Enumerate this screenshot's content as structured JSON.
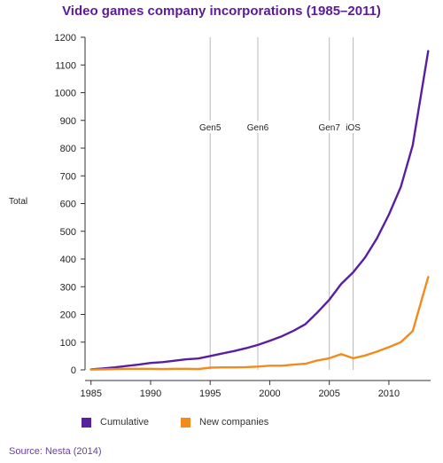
{
  "chart_data": {
    "type": "line",
    "title": "Video games company incorporations (1985–2011)",
    "ylabel": "Total",
    "xlabel": "",
    "xlim": [
      1984.5,
      2013.5
    ],
    "ylim": [
      0,
      1200
    ],
    "xticks": [
      1985,
      1990,
      1995,
      2000,
      2005,
      2010
    ],
    "yticks": [
      0,
      100,
      200,
      300,
      400,
      500,
      600,
      700,
      800,
      900,
      1000,
      1100,
      1200
    ],
    "grid": false,
    "legend_position": "bottom-left",
    "series": [
      {
        "name": "Cumulative",
        "color": "#5a1ea0",
        "points": [
          [
            1985,
            2
          ],
          [
            1986,
            5
          ],
          [
            1987,
            9
          ],
          [
            1988,
            14
          ],
          [
            1989,
            19
          ],
          [
            1990,
            25
          ],
          [
            1991,
            28
          ],
          [
            1992,
            33
          ],
          [
            1993,
            38
          ],
          [
            1994,
            41
          ],
          [
            1995,
            50
          ],
          [
            1996,
            59
          ],
          [
            1997,
            68
          ],
          [
            1998,
            78
          ],
          [
            1999,
            90
          ],
          [
            2000,
            105
          ],
          [
            2001,
            121
          ],
          [
            2002,
            141
          ],
          [
            2003,
            165
          ],
          [
            2004,
            207
          ],
          [
            2005,
            253
          ],
          [
            2006,
            310
          ],
          [
            2007,
            352
          ],
          [
            2008,
            405
          ],
          [
            2009,
            475
          ],
          [
            2010,
            560
          ],
          [
            2011,
            660
          ],
          [
            2012,
            810
          ],
          [
            2013.3,
            1150
          ]
        ]
      },
      {
        "name": "New companies",
        "color": "#f28a1c",
        "points": [
          [
            1985,
            1
          ],
          [
            1986,
            2
          ],
          [
            1987,
            3
          ],
          [
            1988,
            4
          ],
          [
            1989,
            4
          ],
          [
            1990,
            4
          ],
          [
            1991,
            3
          ],
          [
            1992,
            4
          ],
          [
            1993,
            4
          ],
          [
            1994,
            3
          ],
          [
            1995,
            8
          ],
          [
            1996,
            9
          ],
          [
            1997,
            9
          ],
          [
            1998,
            10
          ],
          [
            1999,
            12
          ],
          [
            2000,
            15
          ],
          [
            2001,
            15
          ],
          [
            2002,
            19
          ],
          [
            2003,
            22
          ],
          [
            2004,
            34
          ],
          [
            2005,
            42
          ],
          [
            2006,
            57
          ],
          [
            2007,
            42
          ],
          [
            2008,
            52
          ],
          [
            2009,
            66
          ],
          [
            2010,
            82
          ],
          [
            2011,
            100
          ],
          [
            2012,
            140
          ],
          [
            2013.3,
            335
          ]
        ]
      }
    ],
    "annotations": [
      {
        "label": "Gen5",
        "x": 1995
      },
      {
        "label": "Gen6",
        "x": 1999
      },
      {
        "label": "Gen7",
        "x": 2005
      },
      {
        "label": "iOS",
        "x": 2007
      }
    ]
  },
  "legend": {
    "cumulative": "Cumulative",
    "new_companies": "New companies"
  },
  "source": "Source: Nesta (2014)",
  "colors": {
    "title": "#5b1a99",
    "source": "#6b3fa0",
    "marker_lines": "#b8b8b8",
    "axis": "#333333"
  }
}
